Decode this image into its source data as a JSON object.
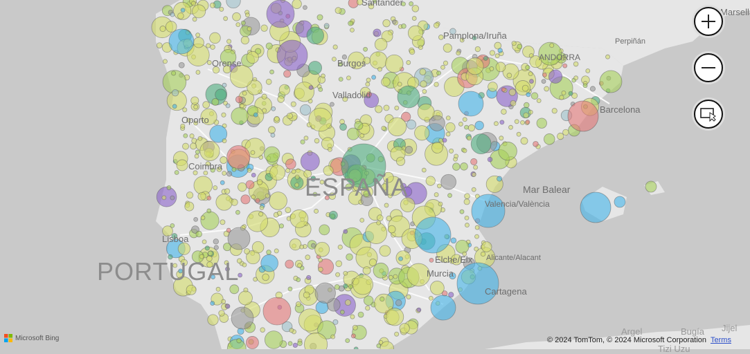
{
  "map": {
    "labels": {
      "santander": "Santander",
      "pamplona": "Pamplona/Iruña",
      "perpignan": "Perpiñán",
      "marseille": "Marsella",
      "andorra": "ANDORRA",
      "orense": "Orense",
      "burgos": "Burgos",
      "valladolid": "Valladolid",
      "oporto": "Oporto",
      "coimbra": "Coimbra",
      "barcelona": "Barcelona",
      "mar_balear": "Mar Balear",
      "valencia": "Valencia/València",
      "lisboa": "Lisboa",
      "portugal": "PORTUGAL",
      "espana": "ESPAÑA",
      "elche": "Elche/Elx",
      "alicante": "Alicante/Alacant",
      "murcia": "Murcia",
      "cartagena": "Cartagena",
      "argel": "Argel",
      "bugia": "Bugía",
      "jijel": "Jijel",
      "tizi": "Tizi Uzu"
    },
    "pie_colors": [
      "#d4dc6a",
      "#a6d15a",
      "#42b4ea",
      "#e57878",
      "#9a9a9a",
      "#8a63c9",
      "#4fae7e",
      "#9fc2cc"
    ]
  },
  "controls": {
    "zoom_in": "zoom-in",
    "zoom_out": "zoom-out",
    "select": "select-data"
  },
  "footer": {
    "logo": "Microsoft Bing",
    "attribution": "© 2024 TomTom, © 2024 Microsoft Corporation",
    "terms": "Terms"
  }
}
